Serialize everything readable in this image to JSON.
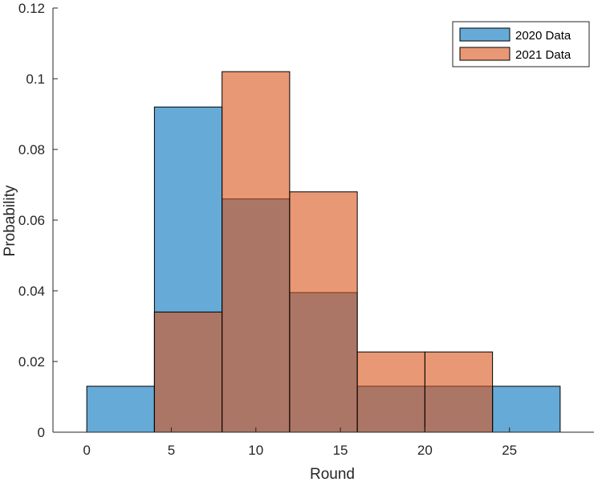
{
  "chart_data": {
    "type": "bar",
    "title": "",
    "xlabel": "Round",
    "ylabel": "Probability",
    "xlim": [
      -2,
      30
    ],
    "ylim": [
      0,
      0.12
    ],
    "xticks": [
      0,
      5,
      10,
      15,
      20,
      25
    ],
    "yticks": [
      0,
      0.02,
      0.04,
      0.06,
      0.08,
      0.1,
      0.12
    ],
    "xtick_labels": [
      "0",
      "5",
      "10",
      "15",
      "20",
      "25"
    ],
    "ytick_labels": [
      "0",
      "0.02",
      "0.04",
      "0.06",
      "0.08",
      "0.1",
      "0.12"
    ],
    "bin_edges": [
      0,
      4,
      8,
      12,
      16,
      20,
      24,
      28
    ],
    "grid": false,
    "legend_position": "top-right",
    "series": [
      {
        "name": "2020 Data",
        "color": "#0072BD",
        "values": [
          0.013,
          0.092,
          0.066,
          0.0395,
          0.013,
          0.013,
          0.013
        ]
      },
      {
        "name": "2021 Data",
        "color": "#D95319",
        "values": [
          0,
          0.034,
          0.102,
          0.068,
          0.0227,
          0.0227,
          0
        ]
      }
    ]
  }
}
